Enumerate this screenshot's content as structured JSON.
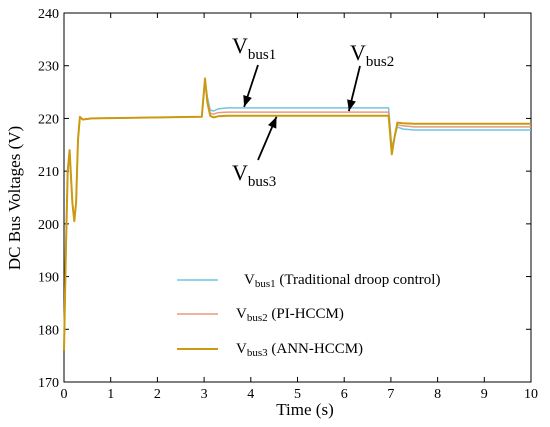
{
  "chart_data": {
    "type": "line",
    "title": "",
    "xlabel": "Time (s)",
    "ylabel": "DC Bus Voltages (V)",
    "xlim": [
      0,
      10
    ],
    "ylim": [
      170,
      240
    ],
    "xticks": [
      0,
      1,
      2,
      3,
      4,
      5,
      6,
      7,
      8,
      9,
      10
    ],
    "yticks": [
      170,
      180,
      190,
      200,
      210,
      220,
      230,
      240
    ],
    "grid": false,
    "legend_position": "bottom-right",
    "series": [
      {
        "name_main": "V",
        "name_sub": "bus1",
        "name_rest": " (Traditional droop control)",
        "color": "#6ec6e6",
        "points": [
          [
            0,
            176
          ],
          [
            0.04,
            195
          ],
          [
            0.08,
            210
          ],
          [
            0.12,
            213
          ],
          [
            0.18,
            204
          ],
          [
            0.22,
            200.5
          ],
          [
            0.26,
            204
          ],
          [
            0.3,
            216
          ],
          [
            0.34,
            220.2
          ],
          [
            0.4,
            219.8
          ],
          [
            0.6,
            220
          ],
          [
            2.95,
            220.3
          ],
          [
            3.02,
            227.2
          ],
          [
            3.07,
            224
          ],
          [
            3.13,
            221.6
          ],
          [
            3.2,
            221.4
          ],
          [
            3.3,
            221.8
          ],
          [
            3.5,
            222
          ],
          [
            6.95,
            222
          ],
          [
            7.02,
            214.5
          ],
          [
            7.08,
            216.5
          ],
          [
            7.14,
            218.4
          ],
          [
            7.25,
            218
          ],
          [
            7.5,
            217.8
          ],
          [
            10,
            217.8
          ]
        ]
      },
      {
        "name_main": "V",
        "name_sub": "bus2",
        "name_rest": " (PI-HCCM)",
        "color": "#e69a7e",
        "points": [
          [
            0,
            176
          ],
          [
            0.04,
            195
          ],
          [
            0.08,
            210
          ],
          [
            0.12,
            213.5
          ],
          [
            0.18,
            204
          ],
          [
            0.22,
            200.5
          ],
          [
            0.26,
            204
          ],
          [
            0.3,
            216
          ],
          [
            0.34,
            220.2
          ],
          [
            0.4,
            219.8
          ],
          [
            0.6,
            220
          ],
          [
            2.95,
            220.3
          ],
          [
            3.02,
            227.4
          ],
          [
            3.07,
            223.5
          ],
          [
            3.13,
            221
          ],
          [
            3.2,
            220.8
          ],
          [
            3.3,
            221.1
          ],
          [
            3.5,
            221.2
          ],
          [
            6.95,
            221.2
          ],
          [
            7.02,
            213.8
          ],
          [
            7.08,
            216.5
          ],
          [
            7.14,
            218.8
          ],
          [
            7.25,
            218.6
          ],
          [
            7.5,
            218.4
          ],
          [
            10,
            218.4
          ]
        ]
      },
      {
        "name_main": "V",
        "name_sub": "bus3",
        "name_rest": " (ANN-HCCM)",
        "color": "#cc9a10",
        "points": [
          [
            0,
            176
          ],
          [
            0.04,
            195
          ],
          [
            0.08,
            210
          ],
          [
            0.12,
            214
          ],
          [
            0.18,
            204
          ],
          [
            0.22,
            200.5
          ],
          [
            0.26,
            204
          ],
          [
            0.3,
            216
          ],
          [
            0.34,
            220.3
          ],
          [
            0.4,
            219.8
          ],
          [
            0.6,
            220
          ],
          [
            2.95,
            220.3
          ],
          [
            3.02,
            227.6
          ],
          [
            3.07,
            223
          ],
          [
            3.13,
            220.5
          ],
          [
            3.2,
            220.2
          ],
          [
            3.3,
            220.4
          ],
          [
            3.5,
            220.5
          ],
          [
            6.95,
            220.5
          ],
          [
            7.02,
            213.2
          ],
          [
            7.08,
            216.5
          ],
          [
            7.14,
            219.2
          ],
          [
            7.25,
            219.1
          ],
          [
            7.5,
            219
          ],
          [
            10,
            219
          ]
        ]
      }
    ],
    "annotations": [
      {
        "main": "V",
        "sub": "bus1"
      },
      {
        "main": "V",
        "sub": "bus2"
      },
      {
        "main": "V",
        "sub": "bus3"
      }
    ]
  }
}
